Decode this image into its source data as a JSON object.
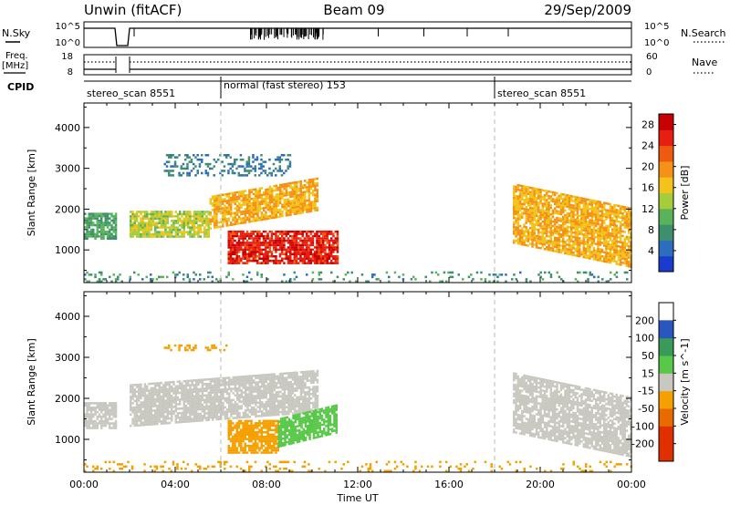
{
  "header": {
    "station": "Unwin (fitACF)",
    "beam": "Beam 09",
    "date": "29/Sep/2009"
  },
  "top_panels": {
    "nsky_label": "N.Sky",
    "nsky_ticks": [
      "10^5",
      "10^0"
    ],
    "nsearch_label": "N.Search",
    "nsearch_ticks": [
      "10^5",
      "10^0"
    ],
    "freq_label": "Freq.",
    "freq_unit": "[MHz]",
    "freq_ticks": [
      "18",
      "8"
    ],
    "nave_label": "Nave",
    "nave_ticks": [
      "60",
      "0"
    ],
    "cpid_label": "CPID",
    "cpid_segments": [
      {
        "label": "stereo_scan 8551",
        "start_h": 0,
        "end_h": 6
      },
      {
        "label": "normal (fast stereo) 153",
        "start_h": 6,
        "end_h": 18
      },
      {
        "label": "stereo_scan 8551",
        "start_h": 18,
        "end_h": 24
      }
    ]
  },
  "x_axis": {
    "label": "Time UT",
    "ticks": [
      "00:00",
      "04:00",
      "08:00",
      "12:00",
      "16:00",
      "20:00",
      "00:00"
    ]
  },
  "colors": {
    "power": [
      "#1a3ccc",
      "#2d6dbd",
      "#3f8f6f",
      "#58b35a",
      "#a6cc3c",
      "#f2c41a",
      "#f59116",
      "#ef5a10",
      "#e81e12",
      "#c80000"
    ],
    "velocity_neg": [
      "#f5a000",
      "#f08a00",
      "#e86a00",
      "#e03000"
    ],
    "velocity_gray": "#c8c8c0",
    "velocity_pos": [
      "#58c848",
      "#3a9a5a",
      "#2a56c0"
    ]
  },
  "chart_data": [
    {
      "type": "heatmap",
      "title": "Power",
      "xlabel": "Time UT",
      "ylabel": "Slant Range [km]",
      "xlim": [
        0,
        24
      ],
      "ylim": [
        200,
        4600
      ],
      "y_ticks": [
        1000,
        2000,
        3000,
        4000
      ],
      "colorbar": {
        "label": "Power [dB]",
        "ticks": [
          4,
          8,
          12,
          16,
          20,
          24,
          28
        ],
        "range": [
          0,
          30
        ]
      },
      "regions": [
        {
          "t0": 0.0,
          "t1": 1.4,
          "r0": 1250,
          "r1": 1900,
          "power": 9
        },
        {
          "t0": 2.0,
          "t1": 5.5,
          "r0": 1300,
          "r1": 1950,
          "power": 14
        },
        {
          "t0": 5.5,
          "t1": 10.2,
          "r0": 1500,
          "r1": 2300,
          "power": 18
        },
        {
          "t0": 6.3,
          "t1": 11.1,
          "r0": 650,
          "r1": 1450,
          "power": 26
        },
        {
          "t0": 18.8,
          "t1": 24.0,
          "r0": 1150,
          "r1": 2600,
          "power": 18
        },
        {
          "t0": 3.5,
          "t1": 9.0,
          "r0": 2800,
          "r1": 3300,
          "power": 6
        },
        {
          "t0": 0.0,
          "t1": 24.0,
          "r0": 200,
          "r1": 450,
          "power": 8
        }
      ]
    },
    {
      "type": "heatmap",
      "title": "Velocity",
      "xlabel": "Time UT",
      "ylabel": "Slant Range [km]",
      "xlim": [
        0,
        24
      ],
      "ylim": [
        200,
        4600
      ],
      "y_ticks": [
        1000,
        2000,
        3000,
        4000
      ],
      "colorbar": {
        "label": "Velocity [m s^-1]",
        "ticks": [
          200,
          100,
          50,
          15,
          -15,
          -50,
          -100,
          -200
        ],
        "range": [
          -250,
          250
        ]
      },
      "regions": [
        {
          "t0": 0.0,
          "t1": 1.4,
          "r0": 1250,
          "r1": 1900,
          "velocity": 0
        },
        {
          "t0": 2.0,
          "t1": 10.2,
          "r0": 1300,
          "r1": 2300,
          "velocity": 0
        },
        {
          "t0": 6.3,
          "t1": 8.5,
          "r0": 650,
          "r1": 1450,
          "velocity": -40
        },
        {
          "t0": 8.5,
          "t1": 11.1,
          "r0": 800,
          "r1": 1500,
          "velocity": 60
        },
        {
          "t0": 18.8,
          "t1": 24.0,
          "r0": 1150,
          "r1": 2600,
          "velocity": 0
        },
        {
          "t0": 3.5,
          "t1": 6.2,
          "r0": 3150,
          "r1": 3300,
          "velocity": -40
        },
        {
          "t0": 0.0,
          "t1": 24.0,
          "r0": 200,
          "r1": 450,
          "velocity": -30
        }
      ]
    }
  ]
}
